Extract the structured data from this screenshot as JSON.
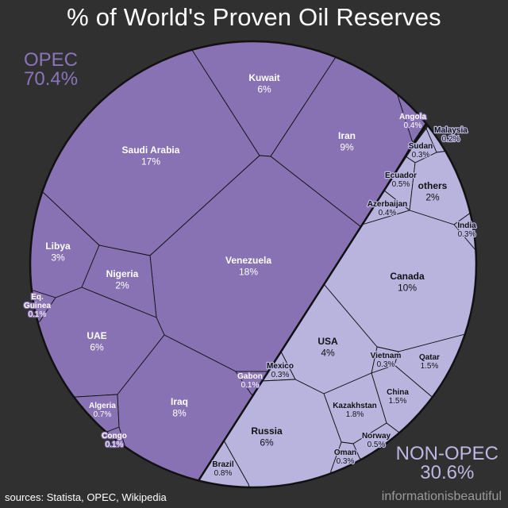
{
  "title": "% of World's Proven Oil Reserves",
  "groups": {
    "opec": {
      "label": "OPEC",
      "value": "70.4%"
    },
    "non_opec": {
      "label": "NON-OPEC",
      "value": "30.6%"
    }
  },
  "footer": {
    "sources": "sources: Statista, OPEC, Wikipedia",
    "brand": "informationisbeautiful"
  },
  "colors": {
    "background": "#303030",
    "opec": "#8872b4",
    "non_opec": "#b8b4de",
    "border": "#111111"
  },
  "chart_data": {
    "type": "voronoi-treemap",
    "title": "% of World's Proven Oil Reserves",
    "shape": "circle",
    "groups": [
      {
        "name": "OPEC",
        "total": "70.4%"
      },
      {
        "name": "NON-OPEC",
        "total": "30.6%"
      }
    ],
    "cells": [
      {
        "name": "Saudi Arabia",
        "value": "17%",
        "group": "OPEC"
      },
      {
        "name": "Kuwait",
        "value": "6%",
        "group": "OPEC"
      },
      {
        "name": "Iran",
        "value": "9%",
        "group": "OPEC"
      },
      {
        "name": "Angola",
        "value": "0.4%",
        "group": "OPEC"
      },
      {
        "name": "Venezuela",
        "value": "18%",
        "group": "OPEC"
      },
      {
        "name": "Libya",
        "value": "3%",
        "group": "OPEC"
      },
      {
        "name": "Nigeria",
        "value": "2%",
        "group": "OPEC"
      },
      {
        "name": "Eq. Guinea",
        "value": "0.1%",
        "group": "OPEC"
      },
      {
        "name": "UAE",
        "value": "6%",
        "group": "OPEC"
      },
      {
        "name": "Algeria",
        "value": "0.7%",
        "group": "OPEC"
      },
      {
        "name": "Congo",
        "value": "0.1%",
        "group": "OPEC"
      },
      {
        "name": "Iraq",
        "value": "8%",
        "group": "OPEC"
      },
      {
        "name": "Gabon",
        "value": "0.1%",
        "group": "OPEC"
      },
      {
        "name": "Malaysia",
        "value": "0.2%",
        "group": "NON-OPEC"
      },
      {
        "name": "Sudan",
        "value": "0.3%",
        "group": "NON-OPEC"
      },
      {
        "name": "Ecuador",
        "value": "0.5%",
        "group": "NON-OPEC"
      },
      {
        "name": "Azerbaijan",
        "value": "0.4%",
        "group": "NON-OPEC"
      },
      {
        "name": "others",
        "value": "2%",
        "group": "NON-OPEC"
      },
      {
        "name": "India",
        "value": "0.3%",
        "group": "NON-OPEC"
      },
      {
        "name": "Canada",
        "value": "10%",
        "group": "NON-OPEC"
      },
      {
        "name": "Qatar",
        "value": "1.5%",
        "group": "NON-OPEC"
      },
      {
        "name": "Vietnam",
        "value": "0.3%",
        "group": "NON-OPEC"
      },
      {
        "name": "USA",
        "value": "4%",
        "group": "NON-OPEC"
      },
      {
        "name": "Mexico",
        "value": "0.3%",
        "group": "NON-OPEC"
      },
      {
        "name": "China",
        "value": "1.5%",
        "group": "NON-OPEC"
      },
      {
        "name": "Kazakhstan",
        "value": "1.8%",
        "group": "NON-OPEC"
      },
      {
        "name": "Norway",
        "value": "0.5%",
        "group": "NON-OPEC"
      },
      {
        "name": "Oman",
        "value": "0.3%",
        "group": "NON-OPEC"
      },
      {
        "name": "Russia",
        "value": "6%",
        "group": "NON-OPEC"
      },
      {
        "name": "Brazil",
        "value": "0.8%",
        "group": "NON-OPEC"
      }
    ]
  }
}
